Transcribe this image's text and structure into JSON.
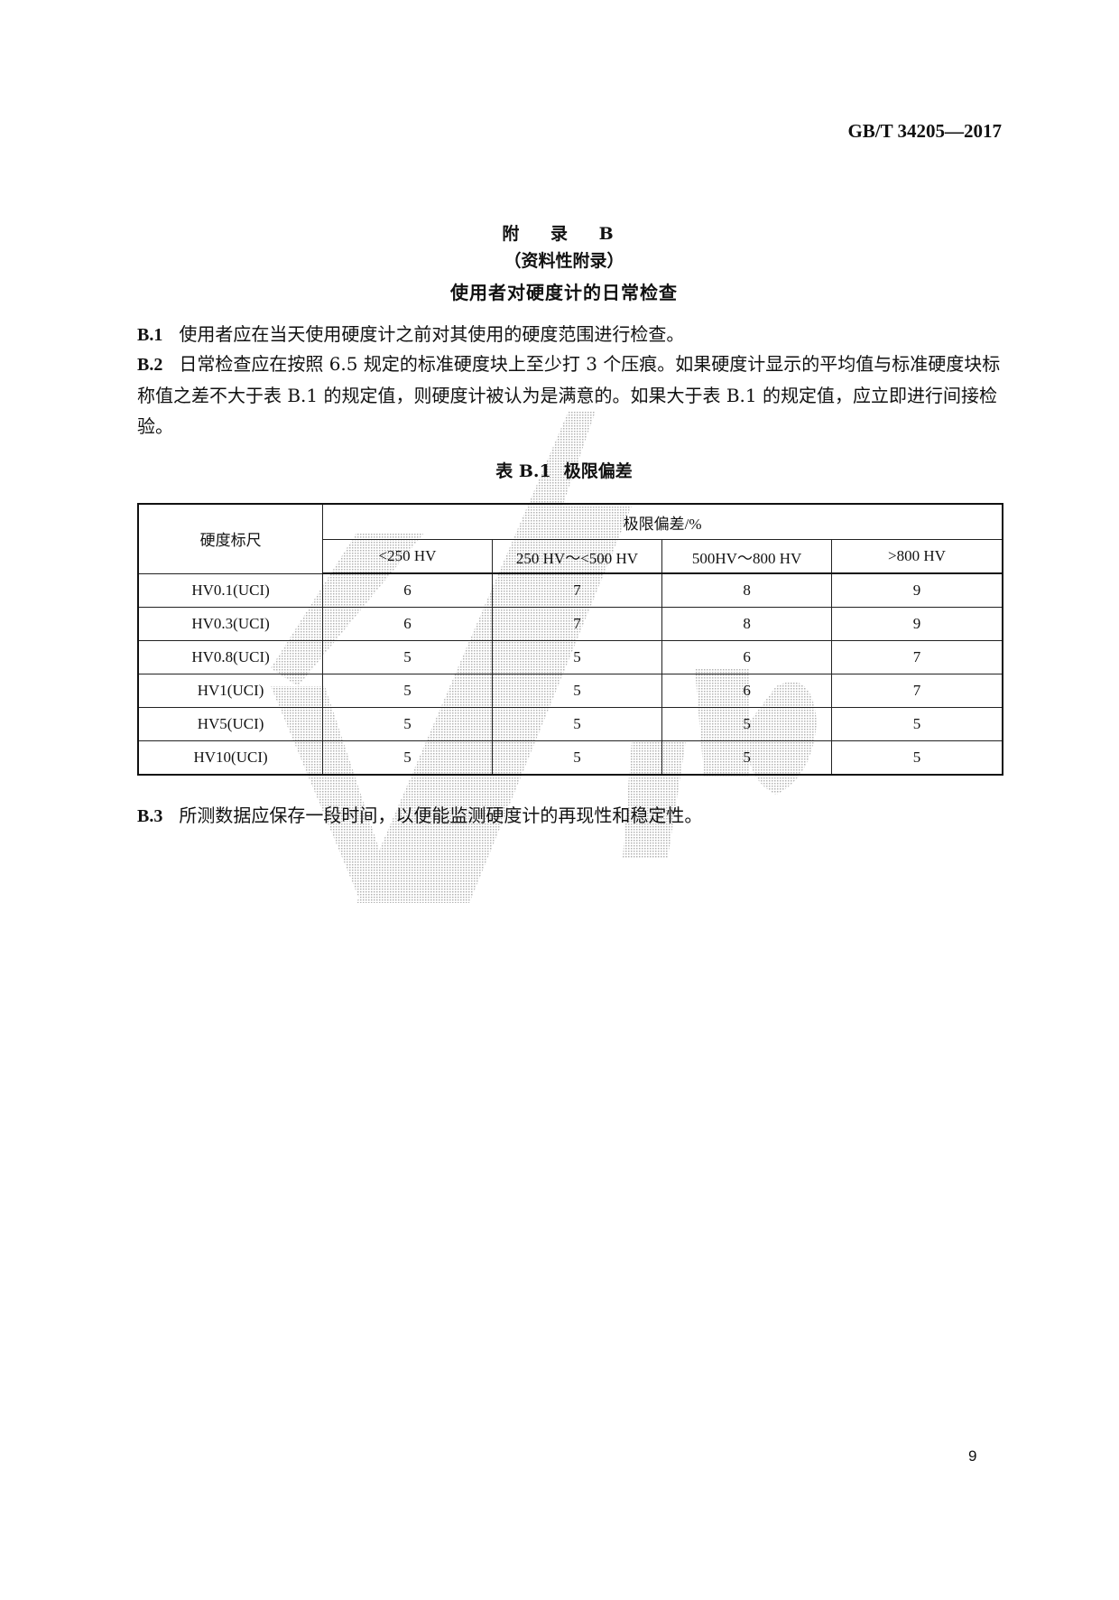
{
  "header": {
    "doc_code": "GB/T 34205—2017"
  },
  "appendix": {
    "label": "附 录 B",
    "type": "（资料性附录）",
    "title": "使用者对硬度计的日常检查"
  },
  "clauses": [
    {
      "num": "B.1",
      "text": "使用者应在当天使用硬度计之前对其使用的硬度范围进行检查。"
    },
    {
      "num": "B.2",
      "text": "日常检查应在按照 6.5 规定的标准硬度块上至少打 3 个压痕。如果硬度计显示的平均值与标准硬度块标称值之差不大于表 B.1 的规定值，则硬度计被认为是满意的。如果大于表 B.1 的规定值，应立即进行间接检验。"
    },
    {
      "num": "B.3",
      "text": "所测数据应保存一段时间，以便能监测硬度计的再现性和稳定性。"
    }
  ],
  "table": {
    "caption_label": "表 B.1",
    "caption_title": "极限偏差",
    "row_header": "硬度标尺",
    "group_header": "极限偏差/%",
    "columns": [
      "<250 HV",
      "250 HV～<500 HV",
      "500HV～800 HV",
      ">800 HV"
    ],
    "rows": [
      {
        "scale": "HV0.1(UCI)",
        "values": [
          "6",
          "7",
          "8",
          "9"
        ]
      },
      {
        "scale": "HV0.3(UCI)",
        "values": [
          "6",
          "7",
          "8",
          "9"
        ]
      },
      {
        "scale": "HV0.8(UCI)",
        "values": [
          "5",
          "5",
          "6",
          "7"
        ]
      },
      {
        "scale": "HV1(UCI)",
        "values": [
          "5",
          "5",
          "6",
          "7"
        ]
      },
      {
        "scale": "HV5(UCI)",
        "values": [
          "5",
          "5",
          "5",
          "5"
        ]
      },
      {
        "scale": "HV10(UCI)",
        "values": [
          "5",
          "5",
          "5",
          "5"
        ]
      }
    ]
  },
  "footer": {
    "page_number": "9"
  },
  "watermark": {
    "color": "#bdbdbd"
  }
}
